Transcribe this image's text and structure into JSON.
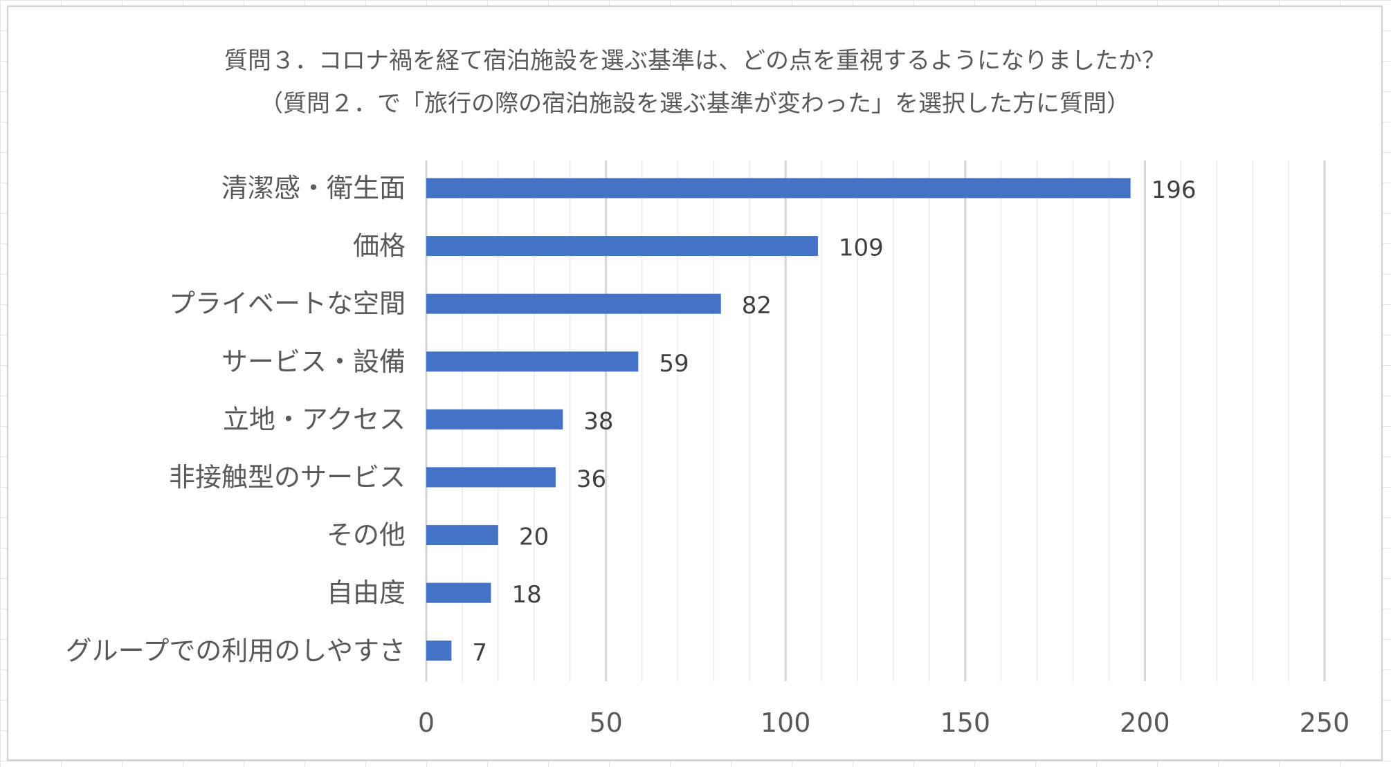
{
  "chart_data": {
    "type": "bar",
    "orientation": "horizontal",
    "title": "質問３．コロナ禍を経て宿泊施設を選ぶ基準は、どの点を重視するようになりましたか？",
    "subtitle": "（質問２．で「旅行の際の宿泊施設を選ぶ基準が変わった」を選択した方に質問）",
    "categories": [
      "清潔感・衛生面",
      "価格",
      "プライベートな空間",
      "サービス・設備",
      "立地・アクセス",
      "非接触型のサービス",
      "その他",
      "自由度",
      "グループでの利用のしやすさ"
    ],
    "values": [
      196,
      109,
      82,
      59,
      38,
      36,
      20,
      18,
      7
    ],
    "xlim": [
      0,
      250
    ],
    "ticks": [
      0,
      50,
      100,
      150,
      200,
      250
    ],
    "tick_labels": [
      "0",
      "50",
      "100",
      "150",
      "200",
      "250"
    ],
    "minor_tick_step": 10,
    "grid": true,
    "data_labels": true,
    "bar_color": "#4472c4"
  }
}
